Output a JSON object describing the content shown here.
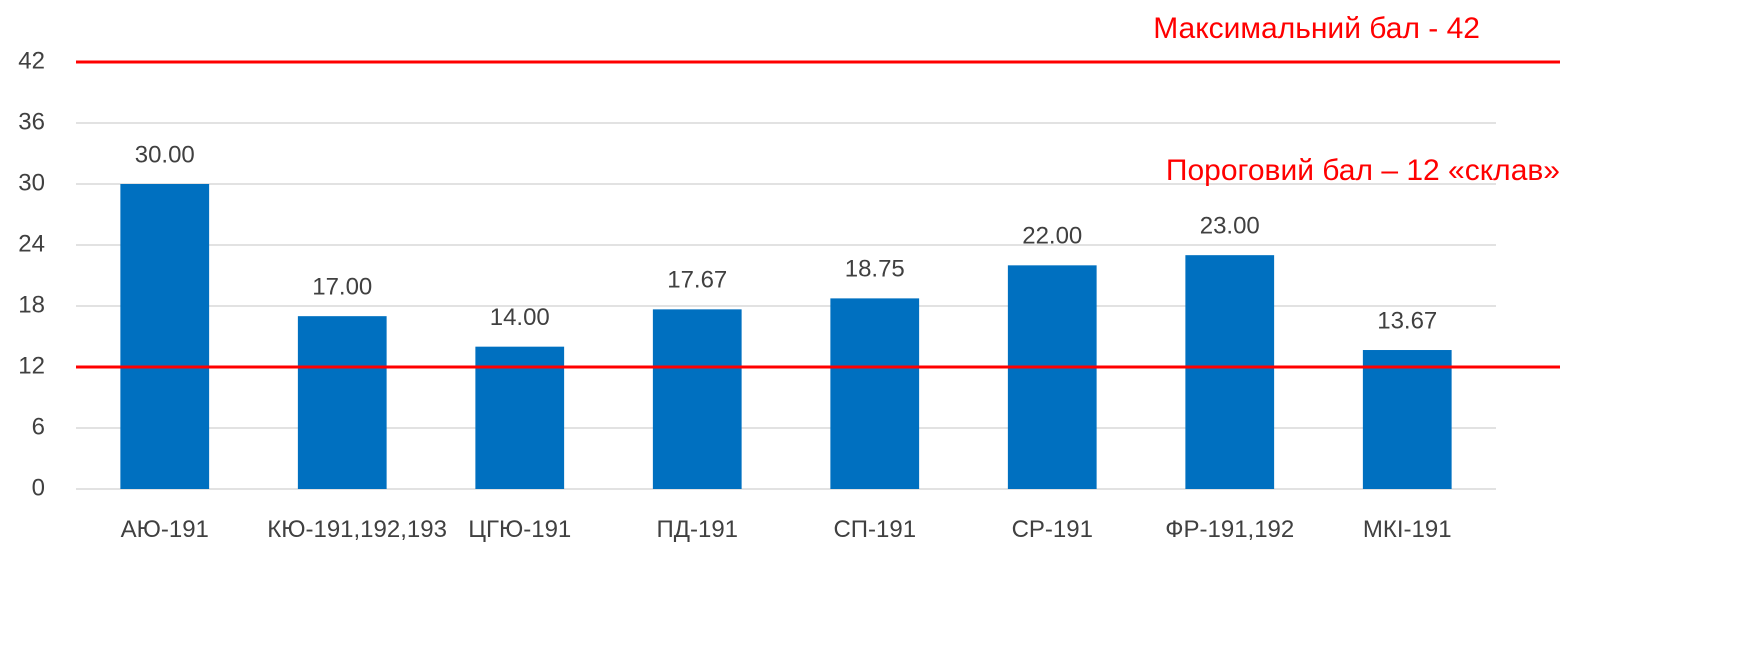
{
  "chart_data": {
    "type": "bar",
    "categories": [
      "АЮ-191",
      "КЮ-191,192,193",
      "ЦГЮ-191",
      "ПД-191",
      "СП-191",
      "СР-191",
      "ФР-191,192",
      "МКІ-191"
    ],
    "values": [
      30,
      17,
      14,
      17.67,
      18.75,
      22,
      23,
      13.67
    ],
    "value_labels": [
      "30.00",
      "17.00",
      "14.00",
      "17.67",
      "18.75",
      "22.00",
      "23.00",
      "13.67"
    ],
    "color": "#0070c0",
    "ylim": [
      0,
      42
    ],
    "yticks": [
      0,
      6,
      12,
      18,
      24,
      30,
      36,
      42
    ],
    "grid": true,
    "reference_lines": [
      {
        "value": 42,
        "label": "Максимальний бал - 42",
        "color": "#ff0000"
      },
      {
        "value": 12,
        "label": "Пороговий бал – 12 «склав»",
        "color": "#ff0000"
      }
    ]
  }
}
